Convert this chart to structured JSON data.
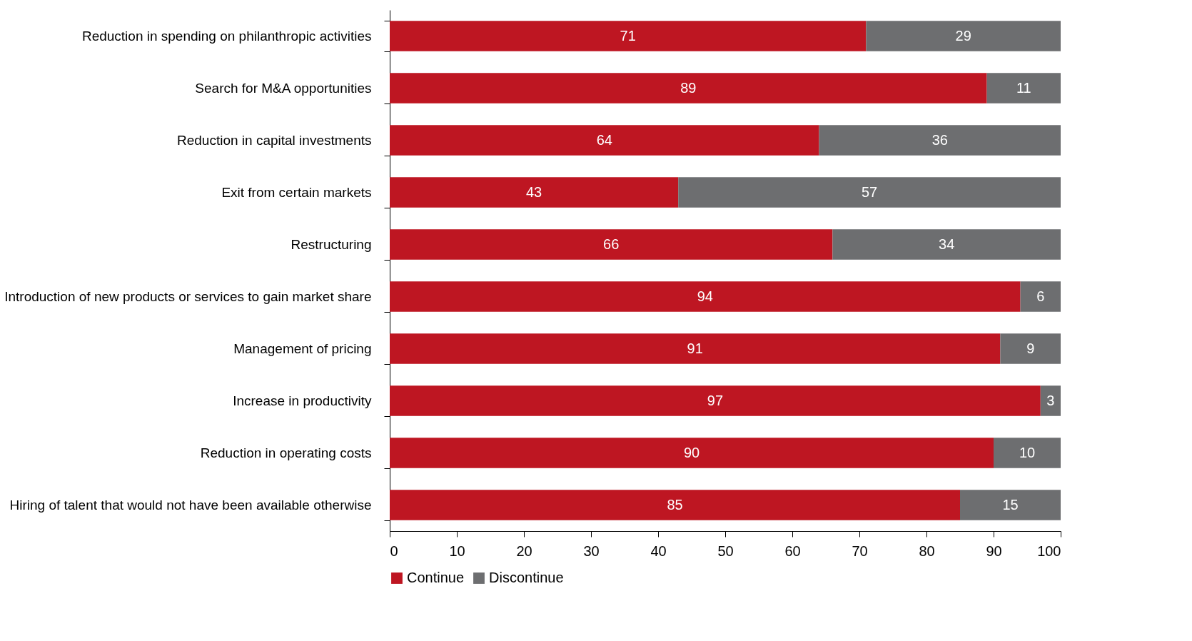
{
  "chart_data": {
    "type": "bar",
    "orientation": "horizontal",
    "stacked": true,
    "data_labels": true,
    "legend": "bottom",
    "grid": false,
    "categories": [
      "Reduction in spending on philanthropic activities",
      "Search for M&A opportunities",
      "Reduction in capital investments",
      "Exit from certain markets",
      "Restructuring",
      "Introduction of new products or services to gain market share",
      "Management of pricing",
      "Increase in productivity",
      "Reduction in operating costs",
      "Hiring of talent that would not have been available otherwise"
    ],
    "series": [
      {
        "name": "Continue",
        "color": "#be1622",
        "values": [
          71,
          89,
          64,
          43,
          66,
          94,
          91,
          97,
          90,
          85
        ]
      },
      {
        "name": "Discontinue",
        "color": "#6d6e70",
        "values": [
          29,
          11,
          36,
          57,
          34,
          6,
          9,
          3,
          10,
          15
        ]
      }
    ],
    "xlim": [
      0,
      100
    ],
    "xticks": [
      0,
      10,
      20,
      30,
      40,
      50,
      60,
      70,
      80,
      90,
      100
    ]
  }
}
